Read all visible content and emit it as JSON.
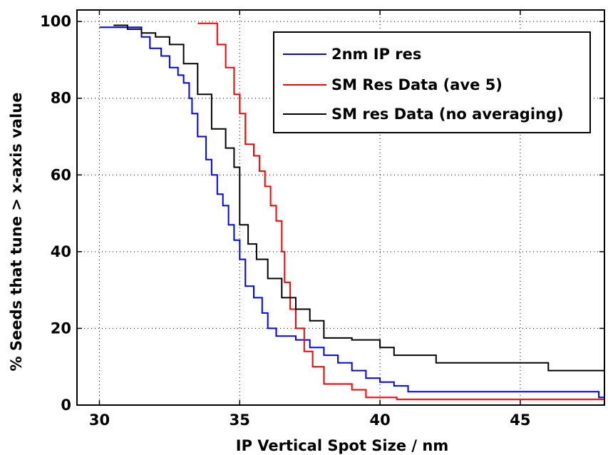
{
  "chart_data": {
    "type": "line",
    "title": "",
    "xlabel": "IP Vertical Spot Size / nm",
    "ylabel": "% Seeds that tune > x-axis value",
    "xlim": [
      29.2,
      48
    ],
    "ylim": [
      0,
      103
    ],
    "xticks": [
      30,
      35,
      40,
      45
    ],
    "yticks": [
      0,
      20,
      40,
      60,
      80,
      100
    ],
    "grid": true,
    "legend_position": "top-right",
    "series": [
      {
        "name": "2nm IP res",
        "color": "#0000ff",
        "points": [
          [
            30.0,
            98.5
          ],
          [
            30.5,
            98.5
          ],
          [
            31.0,
            98.5
          ],
          [
            31.3,
            98.5
          ],
          [
            31.5,
            96
          ],
          [
            31.8,
            93
          ],
          [
            32.2,
            91
          ],
          [
            32.5,
            88
          ],
          [
            32.8,
            86
          ],
          [
            33.0,
            84
          ],
          [
            33.2,
            80
          ],
          [
            33.3,
            76
          ],
          [
            33.5,
            70
          ],
          [
            33.8,
            64
          ],
          [
            34.0,
            60
          ],
          [
            34.2,
            55
          ],
          [
            34.4,
            52
          ],
          [
            34.6,
            47
          ],
          [
            34.8,
            43
          ],
          [
            35.0,
            38
          ],
          [
            35.2,
            31
          ],
          [
            35.5,
            28
          ],
          [
            35.8,
            24
          ],
          [
            36.0,
            20
          ],
          [
            36.3,
            18
          ],
          [
            36.8,
            18
          ],
          [
            37.0,
            17
          ],
          [
            37.5,
            15
          ],
          [
            38.0,
            13
          ],
          [
            38.5,
            11
          ],
          [
            39.0,
            9
          ],
          [
            39.5,
            7
          ],
          [
            40.0,
            6
          ],
          [
            40.5,
            5
          ],
          [
            41.0,
            3.5
          ],
          [
            45.0,
            3.5
          ],
          [
            47.5,
            3.5
          ],
          [
            47.8,
            2
          ],
          [
            48.0,
            2
          ]
        ]
      },
      {
        "name": "SM Res Data (ave 5)",
        "color": "#ff0000",
        "points": [
          [
            33.5,
            99.5
          ],
          [
            33.9,
            99.5
          ],
          [
            34.2,
            94
          ],
          [
            34.5,
            88
          ],
          [
            34.8,
            81
          ],
          [
            35.0,
            76
          ],
          [
            35.2,
            68
          ],
          [
            35.5,
            65
          ],
          [
            35.7,
            61
          ],
          [
            35.9,
            57
          ],
          [
            36.1,
            52
          ],
          [
            36.3,
            48
          ],
          [
            36.5,
            40
          ],
          [
            36.6,
            32
          ],
          [
            36.8,
            25
          ],
          [
            37.0,
            20
          ],
          [
            37.3,
            14
          ],
          [
            37.6,
            10
          ],
          [
            38.0,
            5.5
          ],
          [
            38.5,
            5.5
          ],
          [
            39.0,
            4
          ],
          [
            39.5,
            2
          ],
          [
            40.5,
            2
          ],
          [
            40.6,
            1.5
          ],
          [
            48.0,
            1.5
          ]
        ]
      },
      {
        "name": "SM res Data (no averaging)",
        "color": "#000000",
        "points": [
          [
            30.5,
            99
          ],
          [
            31.0,
            98
          ],
          [
            31.5,
            97
          ],
          [
            32.0,
            96
          ],
          [
            32.5,
            94
          ],
          [
            33.0,
            89
          ],
          [
            33.5,
            81
          ],
          [
            34.0,
            72
          ],
          [
            34.5,
            67
          ],
          [
            34.8,
            62
          ],
          [
            35.0,
            47
          ],
          [
            35.3,
            42
          ],
          [
            35.6,
            38
          ],
          [
            36.0,
            33
          ],
          [
            36.5,
            28
          ],
          [
            37.0,
            25
          ],
          [
            37.5,
            22
          ],
          [
            38.0,
            17.5
          ],
          [
            39.0,
            17
          ],
          [
            40.0,
            15
          ],
          [
            40.5,
            13
          ],
          [
            42.0,
            11
          ],
          [
            45.0,
            11
          ],
          [
            46.0,
            9
          ],
          [
            47.5,
            9
          ],
          [
            48.0,
            8
          ]
        ]
      }
    ]
  }
}
